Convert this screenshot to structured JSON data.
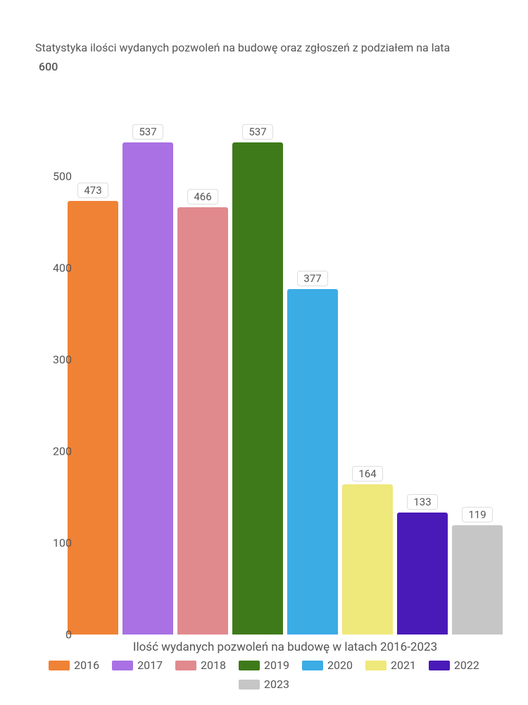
{
  "chart": {
    "type": "bar",
    "title": "Statystyka ilości wydanych pozwoleń na budowę oraz zgłoszeń z podziałem na lata",
    "title_color": "#555555",
    "title_fontsize": 16,
    "xlabel": "Ilość wydanych pozwoleń na budowę w latach 2016-2023",
    "xlabel_fontsize": 17,
    "background_color": "#ffffff",
    "ylim": [
      0,
      600
    ],
    "ymax_display": "600",
    "yticks": [
      0,
      100,
      200,
      300,
      400,
      500
    ],
    "bar_width": 0.9,
    "label_fontsize": 15,
    "tick_fontsize": 16,
    "bars": [
      {
        "year": "2016",
        "value": 473,
        "color": "#f08236"
      },
      {
        "year": "2017",
        "value": 537,
        "color": "#a971e3"
      },
      {
        "year": "2018",
        "value": 466,
        "color": "#e08a8e"
      },
      {
        "year": "2019",
        "value": 537,
        "color": "#3f7a1a"
      },
      {
        "year": "2020",
        "value": 377,
        "color": "#3cace5"
      },
      {
        "year": "2021",
        "value": 164,
        "color": "#efe87b"
      },
      {
        "year": "2022",
        "value": 133,
        "color": "#4a1ab8"
      },
      {
        "year": "2023",
        "value": 119,
        "color": "#c6c6c6"
      }
    ],
    "value_label_bg": "#ffffff",
    "value_label_border": "#dddddd",
    "text_color": "#555555"
  }
}
